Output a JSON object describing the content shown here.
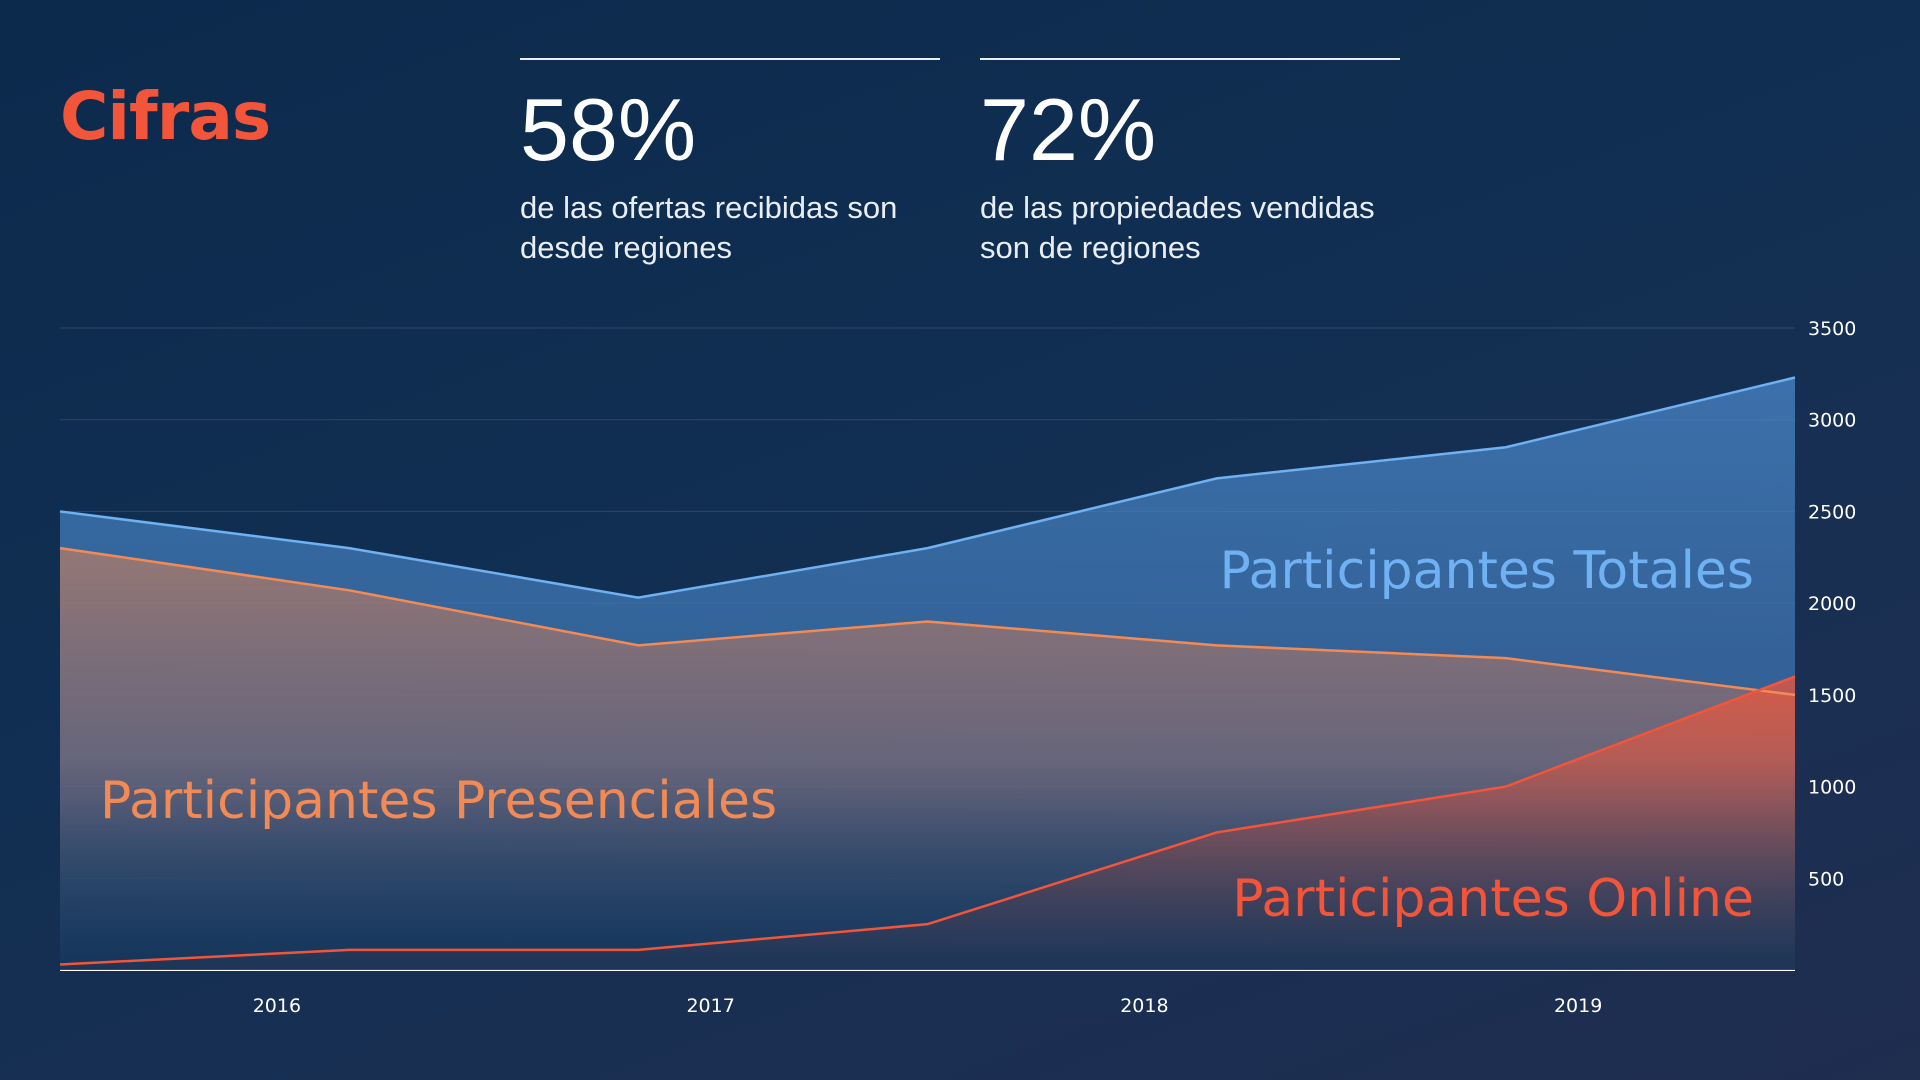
{
  "title": "Cifras",
  "stats": [
    {
      "value": "58%",
      "line1": "de las ofertas recibidas son",
      "line2": "desde regiones"
    },
    {
      "value": "72%",
      "line1": "de las propiedades vendidas",
      "line2": "son de regiones"
    }
  ],
  "colors": {
    "title": "#f2553a",
    "totales": "#6fb1f2",
    "presenciales": "#f28a55",
    "online": "#f2553a"
  },
  "chart_data": {
    "type": "area",
    "title": "",
    "xlabel": "",
    "ylabel": "",
    "ylim": [
      0,
      3500
    ],
    "yticks": [
      500,
      1000,
      1500,
      2000,
      2500,
      3000,
      3500
    ],
    "xtick_labels": [
      "2016",
      "2017",
      "2018",
      "2019"
    ],
    "xtick_positions": [
      1.75,
      3.25,
      4.75,
      6.25
    ],
    "x": [
      1,
      2,
      3,
      4,
      5,
      6,
      7
    ],
    "grid": true,
    "legend": "inline labels",
    "series": [
      {
        "name": "Participantes Totales",
        "values": [
          2500,
          2300,
          2030,
          2300,
          2680,
          2850,
          3230
        ]
      },
      {
        "name": "Participantes Presenciales",
        "values": [
          2300,
          2070,
          1770,
          1900,
          1770,
          1700,
          1500
        ]
      },
      {
        "name": "Participantes Online",
        "values": [
          30,
          110,
          110,
          250,
          750,
          1000,
          1600
        ]
      }
    ]
  }
}
